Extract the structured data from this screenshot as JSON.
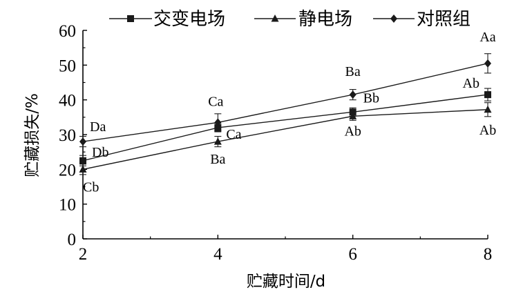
{
  "chart_data": {
    "type": "line",
    "title": "",
    "xlabel": "贮藏时间/d",
    "ylabel": "贮藏损失/%",
    "x": [
      2,
      4,
      6,
      8
    ],
    "xlim": [
      2,
      8
    ],
    "ylim": [
      0,
      60
    ],
    "xticks": [
      "2",
      "4",
      "6",
      "8"
    ],
    "yticks": [
      "0",
      "10",
      "20",
      "30",
      "40",
      "50",
      "60"
    ],
    "grid": false,
    "legend_position": "top",
    "series": [
      {
        "name": "交变电场",
        "marker": "square",
        "values": [
          22.5,
          32.0,
          36.5,
          41.5
        ],
        "errors": [
          1.5,
          1.2,
          1.2,
          1.8
        ],
        "labels": [
          "Db",
          "Ca",
          "Bb",
          "Ab"
        ]
      },
      {
        "name": "静电场",
        "marker": "triangle",
        "values": [
          20.0,
          28.0,
          35.3,
          37.2
        ],
        "errors": [
          1.5,
          1.5,
          1.2,
          2.0
        ],
        "labels": [
          "Cb",
          "Ba",
          "Ab",
          "Ab"
        ]
      },
      {
        "name": "对照组",
        "marker": "diamond",
        "values": [
          28.0,
          33.5,
          41.5,
          50.5
        ],
        "errors": [
          1.5,
          2.5,
          1.5,
          2.8
        ],
        "labels": [
          "Da",
          "Ca",
          "Ba",
          "Aa"
        ]
      }
    ]
  }
}
